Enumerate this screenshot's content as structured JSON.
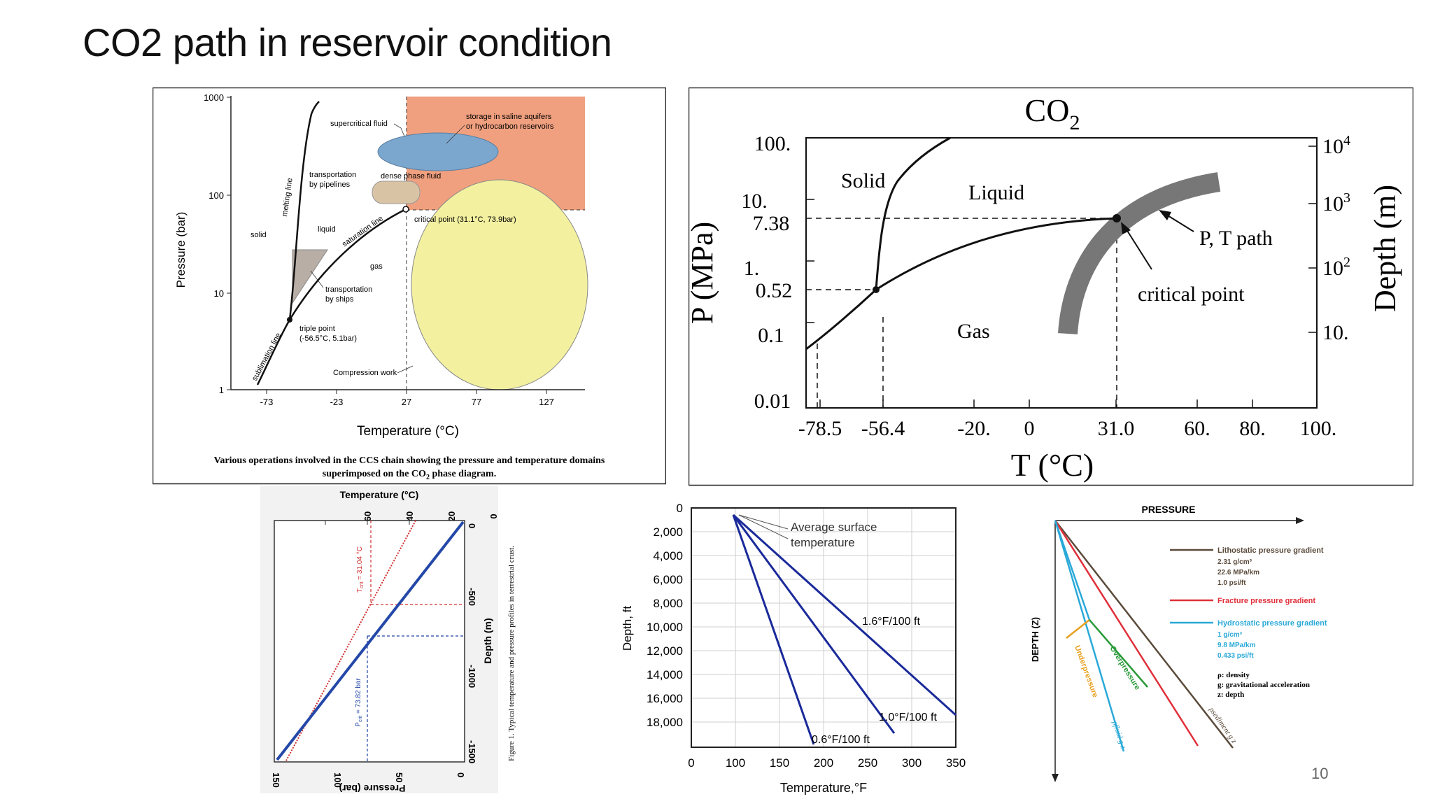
{
  "slide": {
    "title": "CO2 path in reservoir condition",
    "page_number": "10"
  },
  "fig1": {
    "y_ticks": [
      "1000",
      "100",
      "10",
      "1"
    ],
    "x_ticks": [
      "-73",
      "-23",
      "27",
      "77",
      "127"
    ],
    "ylabel": "Pressure (bar)",
    "xlabel": "Temperature (°C)",
    "labels": {
      "supercritical": "supercritical fluid",
      "storage1": "storage in saline aquifers",
      "storage2": "or hydrocarbon reservoirs",
      "transport_pipe1": "transportation",
      "transport_pipe2": "by pipelines",
      "dense_phase": "dense phase fluid",
      "melting": "melting line",
      "critical": "critical point (31.1°C, 73.9bar)",
      "saturation": "saturation line",
      "solid": "solid",
      "liquid": "liquid",
      "gas": "gas",
      "ships1": "transportation",
      "ships2": "by ships",
      "triple1": "triple point",
      "triple2": "(-56.5°C, 5.1bar)",
      "sublimation": "sublimation line",
      "compression": "Compression work"
    },
    "caption_line1": "Various operations involved in the CCS chain showing the pressure and temperature domains",
    "caption_line2_pre": "superimposed on the CO",
    "caption_line2_sub": "2",
    "caption_line2_post": " phase diagram.",
    "colors": {
      "storage": "#f0a07f",
      "supercritical": "#7ba7cf",
      "pipeline": "#d9c3a5",
      "compression": "#f3f0a0",
      "ships": "#b9aea6"
    }
  },
  "fig2": {
    "title": "CO",
    "title_sub": "2",
    "y_left_ticks": [
      "100.",
      "10.",
      "7.38",
      "1.",
      "0.52",
      "0.1",
      "0.01"
    ],
    "y_right_ticks": [
      "10",
      "10",
      "10",
      "10."
    ],
    "y_right_exps": [
      "4",
      "3",
      "2",
      ""
    ],
    "x_ticks": [
      "-78.5",
      "-56.4",
      "-20.",
      "0",
      "31.0",
      "60.",
      "80.",
      "100."
    ],
    "ylabel_left": "P (MPa)",
    "ylabel_right": "Depth (m)",
    "xlabel": "T (°C)",
    "regions": {
      "solid": "Solid",
      "liquid": "Liquid",
      "gas": "Gas"
    },
    "annotations": {
      "path": "P, T path",
      "critical": "critical point"
    }
  },
  "fig3": {
    "top_label": "Temperature (°C)",
    "top_ticks": [
      "60",
      "40",
      "20",
      "0"
    ],
    "bottom_label": "Pressure (bar)",
    "bottom_ticks": [
      "150",
      "100",
      "50",
      "0"
    ],
    "depth_label": "Depth (m)",
    "depth_ticks": [
      "0",
      "-500",
      "-1000",
      "-1500"
    ],
    "tcrit_label": "T",
    "tcrit_sub": "crit",
    "tcrit_value": " = 31.04 °C",
    "pcrit_label": "P",
    "pcrit_sub": "crit",
    "pcrit_value": " = 73.82 bar",
    "caption": "Figure 1.  Typical temperature and pressure profiles in terrestrial crust."
  },
  "fig4": {
    "y_ticks": [
      "0",
      "2,000",
      "4,000",
      "6,000",
      "8,000",
      "10,000",
      "12,000",
      "14,000",
      "16,000",
      "18,000"
    ],
    "x_ticks": [
      "0",
      "100",
      "150",
      "200",
      "250",
      "300",
      "350"
    ],
    "ylabel": "Depth, ft",
    "xlabel": "Temperature,°F",
    "annotation1": "Average surface",
    "annotation2": "temperature",
    "lines": [
      "1.6°F/100 ft",
      "1.0°F/100 ft",
      "0.6°F/100 ft"
    ]
  },
  "fig5": {
    "x_axis": "PRESSURE",
    "y_axis": "DEPTH (Z)",
    "legend": {
      "litho_title": "Lithostatic pressure gradient",
      "litho_1": "2.31 g/cm³",
      "litho_2": "22.6 MPa/km",
      "litho_3": "1.0 psi/ft",
      "frac_title": "Fracture pressure gradient",
      "hydro_title": "Hydrostatic pressure gradient",
      "hydro_1": "1 g/cm³",
      "hydro_2": "9.8 MPa/km",
      "hydro_3": "0.433 psi/ft",
      "rho": "ρ: density",
      "g": "g: gravitational acceleration",
      "z": "z: depth"
    },
    "curve_labels": {
      "under": "Underpressure",
      "over": "Overpressure",
      "fluid": "ρfluid g z",
      "sed": "ρsediment g z"
    },
    "colors": {
      "litho": "#5a4a3a",
      "frac": "#e0303a",
      "hydro": "#2aa9d8",
      "under": "#e8a020",
      "over": "#2a9a3a"
    }
  }
}
